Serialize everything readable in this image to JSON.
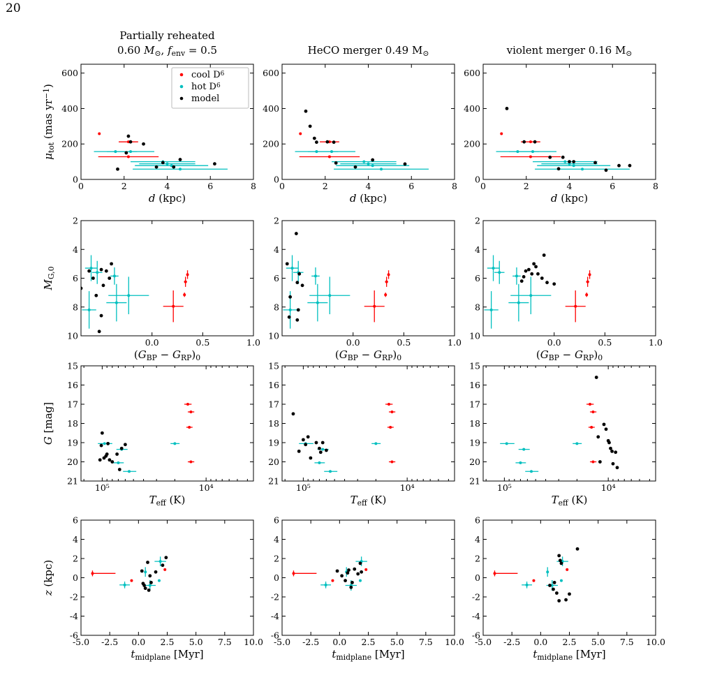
{
  "page_number": "20",
  "colors": {
    "cool": "#ff0000",
    "hot": "#00bfbf",
    "model": "#000000"
  },
  "legend": {
    "cool": "cool D⁶",
    "hot": "hot D⁶",
    "model": "model"
  },
  "column_titles": [
    [
      "Partially reheated",
      "0.60 M⊙,  f_env = 0.5"
    ],
    [
      "HeCO merger 0.49 M⊙"
    ],
    [
      "violent merger 0.16 M⊙"
    ]
  ],
  "axis_labels": {
    "row1_x": "d (kpc)",
    "row1_y": "μ_tot (mas yr⁻¹)",
    "row2_x": "(G_BP − G_RP)₀",
    "row2_y": "M_G,0",
    "row3_x": "T_eff (K)",
    "row3_y": "G [mag]",
    "row4_x": "t_midplane [Myr]",
    "row4_y": "z (kpc)"
  },
  "chart_data": [
    {
      "type": "scatter",
      "row": 1,
      "xlim": [
        0,
        8
      ],
      "ylim": [
        0,
        650
      ],
      "xticks": [
        "0",
        "2",
        "4",
        "6",
        "8"
      ],
      "yticks": [
        "0",
        "200",
        "400",
        "600"
      ],
      "observed": {
        "cool": [
          {
            "x": 0.85,
            "y": 258,
            "xerr": 0
          },
          {
            "x": 2.2,
            "y": 212,
            "xerr": 0.45
          },
          {
            "x": 2.2,
            "y": 128,
            "xerr": 1.4
          }
        ],
        "hot": [
          {
            "x": 1.6,
            "y": 157,
            "xerr": 1.0
          },
          {
            "x": 2.3,
            "y": 157,
            "xerr": 1.1
          },
          {
            "x": 3.8,
            "y": 100,
            "xerr": 1.5
          },
          {
            "x": 4.0,
            "y": 88,
            "xerr": 1.3
          },
          {
            "x": 4.2,
            "y": 78,
            "xerr": 1.7
          },
          {
            "x": 4.6,
            "y": 58,
            "xerr": 2.2
          }
        ]
      },
      "models": [
        [
          [
            1.7,
            58
          ],
          [
            2.1,
            150
          ],
          [
            2.2,
            244
          ],
          [
            2.3,
            212
          ],
          [
            2.9,
            200
          ],
          [
            3.5,
            70
          ],
          [
            3.8,
            95
          ],
          [
            4.3,
            70
          ],
          [
            4.6,
            112
          ],
          [
            6.2,
            88
          ]
        ],
        [
          [
            1.1,
            385
          ],
          [
            1.3,
            300
          ],
          [
            1.5,
            232
          ],
          [
            1.6,
            210
          ],
          [
            2.1,
            212
          ],
          [
            2.4,
            210
          ],
          [
            2.5,
            93
          ],
          [
            3.4,
            70
          ],
          [
            4.2,
            110
          ],
          [
            5.7,
            87
          ]
        ],
        [
          [
            1.1,
            400
          ],
          [
            1.9,
            212
          ],
          [
            2.4,
            212
          ],
          [
            3.1,
            125
          ],
          [
            3.5,
            60
          ],
          [
            3.7,
            125
          ],
          [
            4.0,
            100
          ],
          [
            4.2,
            100
          ],
          [
            5.2,
            95
          ],
          [
            5.7,
            52
          ],
          [
            6.3,
            78
          ],
          [
            6.8,
            78
          ]
        ]
      ]
    },
    {
      "type": "scatter",
      "row": 2,
      "xlim": [
        -0.7,
        1.0
      ],
      "ylim": [
        10,
        2
      ],
      "xticks": [
        "0.0",
        "0.5",
        "1.0"
      ],
      "yticks": [
        "2",
        "4",
        "6",
        "8",
        "10"
      ],
      "observed": {
        "cool": [
          {
            "x": 0.35,
            "y": 5.75,
            "xerr": 0.01,
            "yerr": 0.3
          },
          {
            "x": 0.33,
            "y": 6.25,
            "xerr": 0.015,
            "yerr": 0.35
          },
          {
            "x": 0.32,
            "y": 7.15,
            "xerr": 0,
            "yerr": 0.15
          },
          {
            "x": 0.21,
            "y": 7.95,
            "xerr": 0.1,
            "yerr": 1.1
          }
        ],
        "hot": [
          {
            "x": -0.6,
            "y": 5.3,
            "xerr": 0.06,
            "yerr": 0.9
          },
          {
            "x": -0.54,
            "y": 5.6,
            "xerr": 0.05,
            "yerr": 0.8
          },
          {
            "x": -0.37,
            "y": 5.85,
            "xerr": 0.04,
            "yerr": 0.6
          },
          {
            "x": -0.35,
            "y": 7.7,
            "xerr": 0.1,
            "yerr": 1.3
          },
          {
            "x": -0.23,
            "y": 7.2,
            "xerr": 0.2,
            "yerr": 1.3
          },
          {
            "x": -0.62,
            "y": 8.2,
            "xerr": 0.07,
            "yerr": 1.3
          }
        ]
      },
      "models": [
        [
          [
            -0.7,
            6.7
          ],
          [
            -0.62,
            5.5
          ],
          [
            -0.58,
            6.0
          ],
          [
            -0.55,
            7.2
          ],
          [
            -0.5,
            5.4
          ],
          [
            -0.48,
            6.5
          ],
          [
            -0.45,
            5.5
          ],
          [
            -0.42,
            6.0
          ],
          [
            -0.4,
            5.0
          ],
          [
            -0.5,
            8.6
          ],
          [
            -0.52,
            9.7
          ]
        ],
        [
          [
            -0.56,
            2.9
          ],
          [
            -0.65,
            5.0
          ],
          [
            -0.62,
            7.3
          ],
          [
            -0.63,
            8.7
          ],
          [
            -0.54,
            8.2
          ],
          [
            -0.55,
            6.3
          ],
          [
            -0.53,
            5.7
          ],
          [
            -0.5,
            6.5
          ],
          [
            -0.55,
            8.9
          ]
        ],
        [
          [
            -0.32,
            6.2
          ],
          [
            -0.3,
            5.9
          ],
          [
            -0.28,
            5.5
          ],
          [
            -0.25,
            5.4
          ],
          [
            -0.22,
            5.7
          ],
          [
            -0.2,
            5.0
          ],
          [
            -0.18,
            5.2
          ],
          [
            -0.16,
            5.7
          ],
          [
            -0.12,
            6.0
          ],
          [
            -0.1,
            4.4
          ],
          [
            -0.07,
            6.3
          ],
          [
            0.0,
            6.4
          ]
        ]
      ]
    },
    {
      "type": "scatter",
      "row": 3,
      "x_scale": "log",
      "x_reversed": true,
      "xlim": [
        160000,
        3500
      ],
      "ylim": [
        21,
        15
      ],
      "xticks": [
        "10⁵",
        "10⁴"
      ],
      "yticks": [
        "15",
        "16",
        "17",
        "18",
        "19",
        "20",
        "21"
      ],
      "observed": {
        "cool": [
          {
            "x": 15000,
            "y": 17.0,
            "xerr": 1200
          },
          {
            "x": 14000,
            "y": 17.4,
            "xerr": 1000
          },
          {
            "x": 14500,
            "y": 18.2,
            "xerr": 1000
          },
          {
            "x": 14000,
            "y": 20.0,
            "xerr": 1000
          }
        ],
        "hot": [
          {
            "x": 95000,
            "y": 19.05,
            "xerr": 15000
          },
          {
            "x": 20000,
            "y": 19.05,
            "xerr": 2000
          },
          {
            "x": 65000,
            "y": 19.35,
            "xerr": 8000
          },
          {
            "x": 70000,
            "y": 20.05,
            "xerr": 8000
          },
          {
            "x": 55000,
            "y": 20.5,
            "xerr": 8000
          }
        ]
      },
      "models": [
        [
          [
            105000,
            19.9
          ],
          [
            102000,
            19.15
          ],
          [
            100000,
            18.5
          ],
          [
            96000,
            19.8
          ],
          [
            92000,
            19.7
          ],
          [
            90000,
            19.6
          ],
          [
            88000,
            19.05
          ],
          [
            85000,
            19.9
          ],
          [
            80000,
            20.0
          ],
          [
            72000,
            19.6
          ],
          [
            68000,
            20.4
          ],
          [
            65000,
            19.3
          ],
          [
            60000,
            19.1
          ]
        ],
        [
          [
            125000,
            17.5
          ],
          [
            110000,
            19.45
          ],
          [
            100000,
            18.85
          ],
          [
            95000,
            19.1
          ],
          [
            90000,
            18.7
          ],
          [
            85000,
            19.8
          ],
          [
            75000,
            19.0
          ],
          [
            70000,
            19.3
          ],
          [
            68000,
            19.5
          ],
          [
            65000,
            19.0
          ],
          [
            60000,
            19.4
          ]
        ],
        [
          [
            13000,
            15.6
          ],
          [
            12500,
            18.7
          ],
          [
            12000,
            20.0
          ],
          [
            11000,
            18.05
          ],
          [
            10500,
            18.3
          ],
          [
            10000,
            18.9
          ],
          [
            9800,
            19.0
          ],
          [
            9500,
            19.3
          ],
          [
            9200,
            19.45
          ],
          [
            9000,
            20.1
          ],
          [
            8500,
            19.5
          ],
          [
            8200,
            20.3
          ]
        ]
      ]
    },
    {
      "type": "scatter",
      "row": 4,
      "xlim": [
        -5,
        10
      ],
      "ylim": [
        -6,
        6
      ],
      "xticks": [
        "-5.0",
        "-2.5",
        "0.0",
        "2.5",
        "5.0",
        "7.5",
        "10.0"
      ],
      "yticks": [
        "-6",
        "-4",
        "-2",
        "0",
        "2",
        "4",
        "6"
      ],
      "observed": {
        "cool": [
          {
            "x": -4.0,
            "y": 0.45,
            "xerr_left": 0,
            "xerr_right": 2.0,
            "yerr": 0.3
          },
          {
            "x": -0.6,
            "y": -0.3,
            "xerr": 0,
            "yerr": 0
          },
          {
            "x": 2.3,
            "y": 0.85,
            "xerr": 0,
            "yerr": 0
          }
        ],
        "hot": [
          {
            "x": -1.2,
            "y": -0.75,
            "xerr": 0.45,
            "yerr": 0.35
          },
          {
            "x": 1.0,
            "y": -0.8,
            "xerr": 0.5,
            "yerr": 0.55
          },
          {
            "x": 0.6,
            "y": 0.6,
            "xerr": 0.1,
            "yerr": 0.5
          },
          {
            "x": 1.9,
            "y": 1.7,
            "xerr": 0.5,
            "yerr": 0.5
          },
          {
            "x": 1.8,
            "y": -0.3,
            "xerr": 0,
            "yerr": 0
          }
        ]
      },
      "models": [
        [
          [
            0.3,
            0.7
          ],
          [
            0.4,
            -0.6
          ],
          [
            0.5,
            -0.8
          ],
          [
            0.6,
            -1.1
          ],
          [
            0.8,
            1.6
          ],
          [
            0.9,
            -1.3
          ],
          [
            1.0,
            0.2
          ],
          [
            1.1,
            -0.5
          ],
          [
            1.5,
            0.6
          ],
          [
            2.1,
            1.3
          ],
          [
            2.4,
            2.1
          ]
        ],
        [
          [
            -0.2,
            0.7
          ],
          [
            0.2,
            0.2
          ],
          [
            0.5,
            -0.3
          ],
          [
            0.7,
            0.5
          ],
          [
            0.8,
            0.8
          ],
          [
            1.0,
            -1.0
          ],
          [
            1.1,
            -0.5
          ],
          [
            1.3,
            0.9
          ],
          [
            1.6,
            0.4
          ],
          [
            1.9,
            0.6
          ],
          [
            1.8,
            1.5
          ]
        ],
        [
          [
            0.8,
            -0.8
          ],
          [
            1.1,
            -1.2
          ],
          [
            1.2,
            -0.5
          ],
          [
            1.4,
            -1.6
          ],
          [
            1.6,
            -2.4
          ],
          [
            1.6,
            2.3
          ],
          [
            1.7,
            1.8
          ],
          [
            2.2,
            -2.3
          ],
          [
            2.5,
            -1.7
          ],
          [
            3.2,
            3.0
          ],
          [
            1.8,
            1.5
          ]
        ]
      ]
    }
  ]
}
